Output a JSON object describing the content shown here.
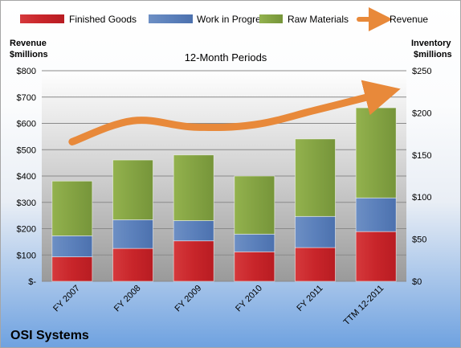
{
  "chart_data": {
    "type": "bar",
    "subtitle": "12-Month Periods",
    "company": "OSI Systems",
    "y_left": {
      "title_line1": "Revenue",
      "title_line2": "$millions",
      "ticks": [
        "$-",
        "$100",
        "$200",
        "$300",
        "$400",
        "$500",
        "$600",
        "$700",
        "$800"
      ],
      "ylim": [
        0,
        800
      ]
    },
    "y_right": {
      "title_line1": "Inventory",
      "title_line2": "$millions",
      "ticks": [
        "$0",
        "$50",
        "$100",
        "$150",
        "$200",
        "$250"
      ],
      "ylim": [
        0,
        250
      ]
    },
    "categories": [
      "FY 2007",
      "FY 2008",
      "FY 2009",
      "FY 2010",
      "FY 2011",
      "TTM 12-2011"
    ],
    "series": [
      {
        "name": "Finished Goods",
        "kind": "stacked-bar",
        "axis": "right",
        "color": "#c0282c",
        "values": [
          29,
          39,
          48,
          35,
          40,
          59
        ]
      },
      {
        "name": "Work in Progress",
        "kind": "stacked-bar",
        "axis": "right",
        "color": "#4f76b0",
        "values": [
          25,
          34,
          24,
          21,
          37,
          40
        ]
      },
      {
        "name": "Raw Materials",
        "kind": "stacked-bar",
        "axis": "right",
        "color": "#7a9a3a",
        "values": [
          65,
          71,
          78,
          69,
          92,
          107
        ]
      },
      {
        "name": "Revenue",
        "kind": "line",
        "axis": "left",
        "color": "#e8893a",
        "values": [
          530,
          610,
          586,
          595,
          650,
          708
        ]
      }
    ],
    "grid": true,
    "legend_position": "top"
  }
}
